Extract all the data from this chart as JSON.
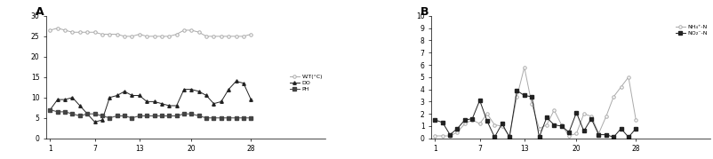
{
  "x": [
    1,
    2,
    3,
    4,
    5,
    6,
    7,
    8,
    9,
    10,
    11,
    12,
    13,
    14,
    15,
    16,
    17,
    18,
    19,
    20,
    21,
    22,
    23,
    24,
    25,
    26,
    27,
    28
  ],
  "WT": [
    26.5,
    27,
    26.5,
    26,
    26,
    26,
    26,
    25.5,
    25.5,
    25.5,
    25,
    25,
    25.5,
    25,
    25,
    25,
    25,
    25.5,
    26.5,
    26.5,
    26,
    25,
    25,
    25,
    25,
    25,
    25,
    25.5
  ],
  "DO": [
    7,
    9.5,
    9.5,
    10,
    8,
    6,
    4,
    4.5,
    10,
    10.5,
    11.5,
    10.5,
    10.5,
    9,
    9,
    8.5,
    8,
    8,
    12,
    12,
    11.5,
    10.5,
    8.5,
    9,
    12,
    14,
    13.5,
    9.5
  ],
  "PH": [
    7,
    6.5,
    6.5,
    6,
    5.5,
    6,
    6,
    5.5,
    5,
    5.5,
    5.5,
    5,
    5.5,
    5.5,
    5.5,
    5.5,
    5.5,
    5.5,
    6,
    6,
    5.5,
    5,
    5,
    5,
    5,
    5,
    5,
    5
  ],
  "NH4N": [
    0.2,
    0.2,
    0.2,
    0.5,
    1.2,
    1.5,
    1.2,
    2.0,
    1.1,
    1.0,
    0.2,
    3.4,
    5.8,
    2.8,
    0.8,
    1.1,
    2.3,
    1.1,
    0.2,
    0.4,
    2.0,
    1.8,
    0.4,
    1.8,
    3.4,
    4.2,
    5.0,
    1.5
  ],
  "NO2N": [
    1.5,
    1.3,
    0.3,
    0.8,
    1.5,
    1.6,
    3.1,
    1.4,
    0.1,
    1.2,
    0.1,
    3.9,
    3.5,
    3.4,
    0.1,
    1.7,
    1.1,
    1.0,
    0.5,
    2.1,
    0.6,
    1.6,
    0.3,
    0.3,
    0.1,
    0.8,
    0.1,
    0.8
  ],
  "xticks_A": [
    1,
    7,
    13,
    20,
    28
  ],
  "xticks_B": [
    1,
    7,
    13,
    20,
    28
  ],
  "ylim_A": [
    0,
    30
  ],
  "yticks_A": [
    0,
    5,
    10,
    15,
    20,
    25,
    30
  ],
  "ylim_B": [
    0,
    10
  ],
  "yticks_B": [
    0,
    1,
    2,
    3,
    4,
    5,
    6,
    7,
    8,
    9,
    10
  ],
  "label_A": "A",
  "label_B": "B",
  "legend_WT": "W.T(°C)",
  "legend_DO": "DO",
  "legend_PH": "PH",
  "legend_NH4N": "NH₄⁺-N",
  "legend_NO2N": "NO₂⁻-N",
  "color_WT": "#aaaaaa",
  "color_DO": "#222222",
  "color_PH": "#444444",
  "color_NH4N": "#aaaaaa",
  "color_NO2N": "#222222",
  "marker_WT": "o",
  "marker_DO": "^",
  "marker_PH": "s",
  "marker_NH4N": "o",
  "marker_NO2N": "s",
  "bg_color": "#ffffff"
}
